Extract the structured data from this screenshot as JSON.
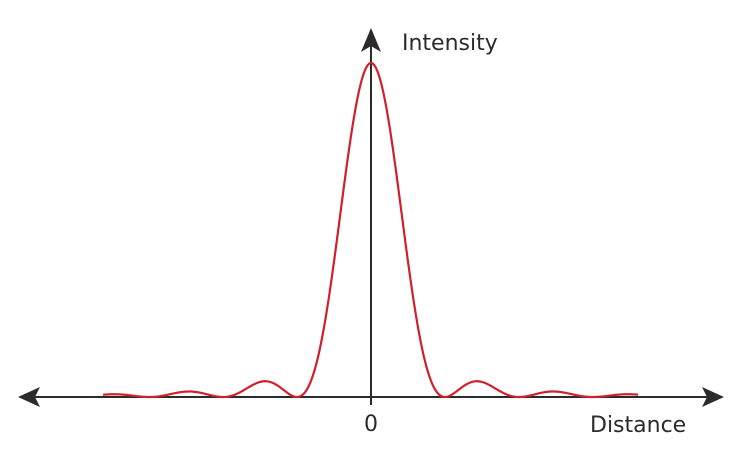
{
  "y_axis_label": "Intensity",
  "x_axis_label": "Distance",
  "origin_label": "0"
}
